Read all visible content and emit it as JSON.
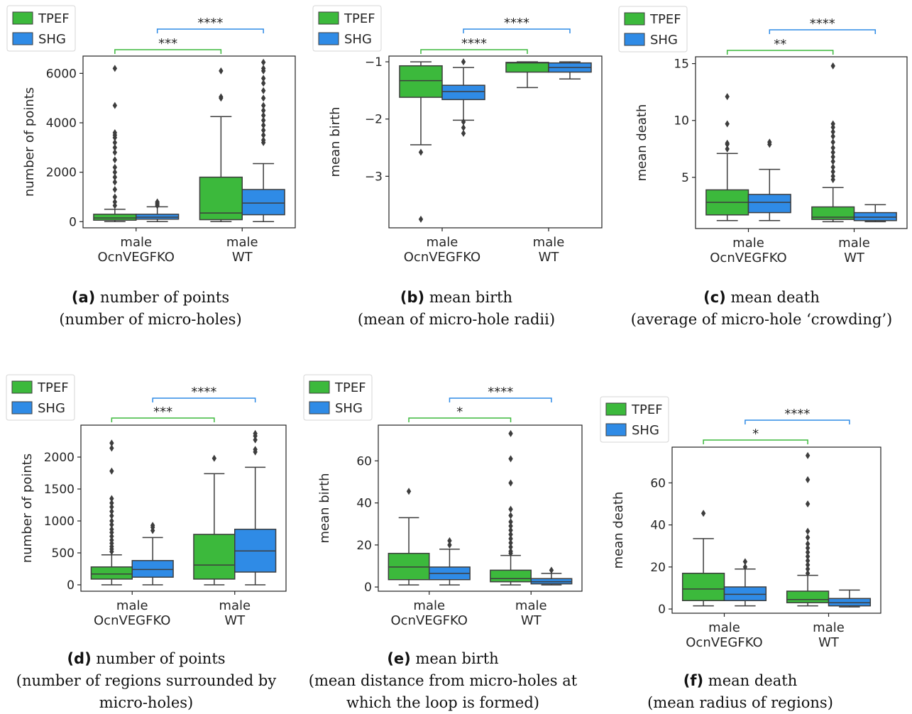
{
  "colors": {
    "tpef": "#3cb93c",
    "shg": "#2f8be6",
    "whisker": "#3d3d3d"
  },
  "legend": [
    "TPEF",
    "SHG"
  ],
  "chart_data": [
    {
      "type": "box",
      "id": "a",
      "ylabel": "number of points",
      "ylim": [
        -250,
        6700
      ],
      "yticks": [
        0,
        2000,
        4000,
        6000
      ],
      "categories": [
        "male\nOcnVEGFKO",
        "male\nWT"
      ],
      "series": [
        {
          "name": "TPEF",
          "boxes": [
            {
              "whislo": 0,
              "q1": 60,
              "med": 150,
              "q3": 300,
              "whishi": 500,
              "fliers": [
                650,
                800,
                1000,
                1300,
                1600,
                1800,
                2000,
                2200,
                2500,
                2800,
                3000,
                3200,
                3400,
                3500,
                3600,
                4700,
                6200
              ]
            },
            {
              "whislo": 0,
              "q1": 80,
              "med": 350,
              "q3": 1800,
              "whishi": 4250,
              "fliers": [
                5000,
                5050,
                6100
              ]
            }
          ]
        },
        {
          "name": "SHG",
          "boxes": [
            {
              "whislo": 0,
              "q1": 100,
              "med": 180,
              "q3": 300,
              "whishi": 600,
              "fliers": [
                650,
                700,
                750,
                800
              ]
            },
            {
              "whislo": 0,
              "q1": 280,
              "med": 750,
              "q3": 1300,
              "whishi": 2350,
              "fliers": [
                3200,
                3300,
                3500,
                3700,
                3900,
                4100,
                4300,
                4500,
                4700,
                5000,
                5300,
                5600,
                5800,
                6100,
                6200,
                6450
              ]
            }
          ]
        }
      ],
      "significance": [
        {
          "series": "TPEF",
          "label": "***"
        },
        {
          "series": "SHG",
          "label": "****"
        }
      ]
    },
    {
      "type": "box",
      "id": "b",
      "ylabel": "mean birth",
      "ylim": [
        -3.9,
        -0.9
      ],
      "yticks": [
        -3,
        -2,
        -1
      ],
      "ytick_labels": [
        "−3",
        "−2",
        "−1"
      ],
      "categories": [
        "male\nOcnVEGFKO",
        "male\nWT"
      ],
      "series": [
        {
          "name": "TPEF",
          "boxes": [
            {
              "whislo": -2.45,
              "q1": -1.62,
              "med": -1.33,
              "q3": -1.07,
              "whishi": -1.0,
              "fliers": [
                -2.58,
                -3.75
              ]
            },
            {
              "whislo": -1.45,
              "q1": -1.18,
              "med": -1.02,
              "q3": -1.01,
              "whishi": -1.0,
              "fliers": []
            }
          ]
        },
        {
          "name": "SHG",
          "boxes": [
            {
              "whislo": -2.02,
              "q1": -1.66,
              "med": -1.52,
              "q3": -1.41,
              "whishi": -1.1,
              "fliers": [
                -1.0,
                -2.05,
                -2.15,
                -2.25
              ]
            },
            {
              "whislo": -1.3,
              "q1": -1.18,
              "med": -1.1,
              "q3": -1.02,
              "whishi": -1.0,
              "fliers": []
            }
          ]
        }
      ],
      "significance": [
        {
          "series": "TPEF",
          "label": "****"
        },
        {
          "series": "SHG",
          "label": "****"
        }
      ]
    },
    {
      "type": "box",
      "id": "c",
      "ylabel": "mean death",
      "ylim": [
        0.5,
        15.6
      ],
      "yticks": [
        5,
        10,
        15
      ],
      "categories": [
        "male\nOcnVEGFKO",
        "male\nWT"
      ],
      "series": [
        {
          "name": "TPEF",
          "boxes": [
            {
              "whislo": 1.2,
              "q1": 1.7,
              "med": 2.8,
              "q3": 3.9,
              "whishi": 7.1,
              "fliers": [
                7.5,
                7.9,
                8.0,
                9.7,
                12.1
              ]
            },
            {
              "whislo": 1.1,
              "q1": 1.3,
              "med": 1.5,
              "q3": 2.4,
              "whishi": 4.1,
              "fliers": [
                4.8,
                5.1,
                5.5,
                5.9,
                6.4,
                6.8,
                7.2,
                7.6,
                8.1,
                8.6,
                9.0,
                9.4,
                9.7,
                14.8
              ]
            }
          ]
        },
        {
          "name": "SHG",
          "boxes": [
            {
              "whislo": 1.2,
              "q1": 1.9,
              "med": 2.8,
              "q3": 3.5,
              "whishi": 5.7,
              "fliers": [
                7.9,
                8.1
              ]
            },
            {
              "whislo": 1.1,
              "q1": 1.2,
              "med": 1.5,
              "q3": 1.9,
              "whishi": 2.6,
              "fliers": []
            }
          ]
        }
      ],
      "significance": [
        {
          "series": "TPEF",
          "label": "**"
        },
        {
          "series": "SHG",
          "label": "****"
        }
      ]
    },
    {
      "type": "box",
      "id": "d",
      "ylabel": "number of points",
      "ylim": [
        -100,
        2500
      ],
      "yticks": [
        0,
        500,
        1000,
        1500,
        2000
      ],
      "categories": [
        "male\nOcnVEGFKO",
        "male\nWT"
      ],
      "series": [
        {
          "name": "TPEF",
          "boxes": [
            {
              "whislo": 0,
              "q1": 90,
              "med": 170,
              "q3": 280,
              "whishi": 470,
              "fliers": [
                520,
                560,
                600,
                650,
                700,
                760,
                820,
                870,
                940,
                1000,
                1080,
                1150,
                1220,
                1280,
                1350,
                1780,
                2140,
                2220
              ]
            },
            {
              "whislo": 0,
              "q1": 90,
              "med": 310,
              "q3": 790,
              "whishi": 1740,
              "fliers": [
                1980
              ]
            }
          ]
        },
        {
          "name": "SHG",
          "boxes": [
            {
              "whislo": 0,
              "q1": 120,
              "med": 240,
              "q3": 380,
              "whishi": 740,
              "fliers": [
                850,
                900,
                930
              ]
            },
            {
              "whislo": 0,
              "q1": 200,
              "med": 530,
              "q3": 870,
              "whishi": 1840,
              "fliers": [
                2080,
                2120,
                2270,
                2330,
                2370
              ]
            }
          ]
        }
      ],
      "significance": [
        {
          "series": "TPEF",
          "label": "***"
        },
        {
          "series": "SHG",
          "label": "****"
        }
      ]
    },
    {
      "type": "box",
      "id": "e",
      "ylabel": "mean birth",
      "ylim": [
        -2,
        77
      ],
      "yticks": [
        0,
        20,
        40,
        60
      ],
      "categories": [
        "male\nOcnVEGFKO",
        "male\nWT"
      ],
      "series": [
        {
          "name": "TPEF",
          "boxes": [
            {
              "whislo": 1,
              "q1": 3.5,
              "med": 9.5,
              "q3": 16,
              "whishi": 33,
              "fliers": [
                45.5
              ]
            },
            {
              "whislo": 1,
              "q1": 2.5,
              "med": 4,
              "q3": 8,
              "whishi": 15,
              "fliers": [
                16,
                17,
                19,
                21,
                23,
                25,
                27,
                29,
                31,
                34,
                37,
                49.5,
                61,
                73
              ]
            }
          ]
        },
        {
          "name": "SHG",
          "boxes": [
            {
              "whislo": 1,
              "q1": 3.5,
              "med": 6.5,
              "q3": 9.5,
              "whishi": 18,
              "fliers": [
                20,
                22
              ]
            },
            {
              "whislo": 1,
              "q1": 1.5,
              "med": 2.5,
              "q3": 4,
              "whishi": 6.5,
              "fliers": [
                8
              ]
            }
          ]
        }
      ],
      "significance": [
        {
          "series": "TPEF",
          "label": "*"
        },
        {
          "series": "SHG",
          "label": "****"
        }
      ]
    },
    {
      "type": "box",
      "id": "f",
      "ylabel": "mean death",
      "ylim": [
        -2,
        77
      ],
      "yticks": [
        0,
        20,
        40,
        60
      ],
      "categories": [
        "male\nOcnVEGFKO",
        "male\nWT"
      ],
      "series": [
        {
          "name": "TPEF",
          "boxes": [
            {
              "whislo": 1.5,
              "q1": 4,
              "med": 9.5,
              "q3": 17,
              "whishi": 33.5,
              "fliers": [
                45.5
              ]
            },
            {
              "whislo": 1.5,
              "q1": 3,
              "med": 4.5,
              "q3": 8.5,
              "whishi": 16,
              "fliers": [
                17,
                19,
                21,
                23,
                25,
                27,
                29,
                31,
                34,
                37,
                50,
                61.5,
                73
              ]
            }
          ]
        },
        {
          "name": "SHG",
          "boxes": [
            {
              "whislo": 1.5,
              "q1": 4,
              "med": 7,
              "q3": 10.5,
              "whishi": 19,
              "fliers": [
                20,
                22.5
              ]
            },
            {
              "whislo": 1,
              "q1": 1.5,
              "med": 3,
              "q3": 5,
              "whishi": 9,
              "fliers": []
            }
          ]
        }
      ],
      "significance": [
        {
          "series": "TPEF",
          "label": "*"
        },
        {
          "series": "SHG",
          "label": "****"
        }
      ]
    }
  ],
  "captions": [
    {
      "tag": "(a)",
      "title": "number of points",
      "lines": [
        "(number of micro-holes)"
      ]
    },
    {
      "tag": "(b)",
      "title": "mean birth",
      "lines": [
        "(mean of micro-hole radii)"
      ]
    },
    {
      "tag": "(c)",
      "title": "mean death",
      "lines": [
        "(average of micro-hole ‘crowding’)"
      ]
    },
    {
      "tag": "(d)",
      "title": "number of points",
      "lines": [
        "(number of regions surrounded by",
        "micro-holes)"
      ]
    },
    {
      "tag": "(e)",
      "title": "mean birth",
      "lines": [
        "(mean distance from micro-holes at",
        "which the loop is formed)"
      ]
    },
    {
      "tag": "(f)",
      "title": "mean death",
      "lines": [
        "(mean radius of regions)"
      ]
    }
  ]
}
